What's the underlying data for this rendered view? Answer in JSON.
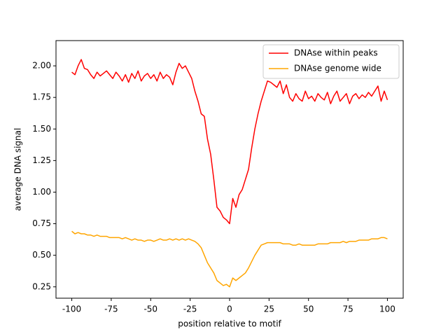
{
  "chart_data": {
    "type": "line",
    "xlabel": "position relative to motif",
    "ylabel": "average DNA signal",
    "x": [
      -100,
      -98,
      -96,
      -94,
      -92,
      -90,
      -88,
      -86,
      -84,
      -82,
      -80,
      -78,
      -76,
      -74,
      -72,
      -70,
      -68,
      -66,
      -64,
      -62,
      -60,
      -58,
      -56,
      -54,
      -52,
      -50,
      -48,
      -46,
      -44,
      -42,
      -40,
      -38,
      -36,
      -34,
      -32,
      -30,
      -28,
      -26,
      -24,
      -22,
      -20,
      -18,
      -16,
      -14,
      -12,
      -10,
      -8,
      -6,
      -4,
      -2,
      0,
      2,
      4,
      6,
      8,
      10,
      12,
      14,
      16,
      18,
      20,
      22,
      24,
      26,
      28,
      30,
      32,
      34,
      36,
      38,
      40,
      42,
      44,
      46,
      48,
      50,
      52,
      54,
      56,
      58,
      60,
      62,
      64,
      66,
      68,
      70,
      72,
      74,
      76,
      78,
      80,
      82,
      84,
      86,
      88,
      90,
      92,
      94,
      96,
      98,
      100
    ],
    "series": [
      {
        "name": "DNAse within peaks",
        "color": "#ff0000",
        "values": [
          1.95,
          1.93,
          2.0,
          2.05,
          1.98,
          1.97,
          1.93,
          1.9,
          1.95,
          1.92,
          1.94,
          1.96,
          1.93,
          1.9,
          1.95,
          1.92,
          1.88,
          1.93,
          1.87,
          1.94,
          1.9,
          1.96,
          1.88,
          1.92,
          1.94,
          1.9,
          1.93,
          1.88,
          1.95,
          1.9,
          1.93,
          1.91,
          1.85,
          1.95,
          2.02,
          1.98,
          2.0,
          1.95,
          1.9,
          1.8,
          1.72,
          1.62,
          1.6,
          1.42,
          1.3,
          1.1,
          0.88,
          0.85,
          0.8,
          0.78,
          0.75,
          0.95,
          0.88,
          0.98,
          1.02,
          1.1,
          1.18,
          1.35,
          1.5,
          1.62,
          1.72,
          1.8,
          1.88,
          1.87,
          1.85,
          1.83,
          1.88,
          1.78,
          1.85,
          1.75,
          1.72,
          1.78,
          1.74,
          1.72,
          1.8,
          1.74,
          1.76,
          1.72,
          1.78,
          1.75,
          1.73,
          1.79,
          1.7,
          1.76,
          1.8,
          1.72,
          1.75,
          1.78,
          1.7,
          1.76,
          1.78,
          1.74,
          1.77,
          1.75,
          1.79,
          1.76,
          1.8,
          1.84,
          1.72,
          1.8,
          1.73
        ]
      },
      {
        "name": "DNAse genome wide",
        "color": "#ffa500",
        "values": [
          0.69,
          0.67,
          0.68,
          0.67,
          0.67,
          0.66,
          0.66,
          0.65,
          0.66,
          0.65,
          0.65,
          0.65,
          0.64,
          0.64,
          0.64,
          0.64,
          0.63,
          0.64,
          0.63,
          0.62,
          0.63,
          0.62,
          0.62,
          0.61,
          0.62,
          0.62,
          0.61,
          0.62,
          0.63,
          0.62,
          0.62,
          0.63,
          0.62,
          0.63,
          0.62,
          0.63,
          0.62,
          0.63,
          0.62,
          0.61,
          0.59,
          0.56,
          0.5,
          0.44,
          0.4,
          0.36,
          0.3,
          0.28,
          0.26,
          0.27,
          0.25,
          0.32,
          0.3,
          0.32,
          0.34,
          0.36,
          0.4,
          0.45,
          0.5,
          0.54,
          0.58,
          0.59,
          0.6,
          0.6,
          0.6,
          0.6,
          0.6,
          0.59,
          0.59,
          0.59,
          0.58,
          0.58,
          0.59,
          0.58,
          0.58,
          0.58,
          0.58,
          0.58,
          0.59,
          0.59,
          0.59,
          0.59,
          0.6,
          0.6,
          0.6,
          0.6,
          0.61,
          0.6,
          0.61,
          0.61,
          0.61,
          0.62,
          0.62,
          0.62,
          0.62,
          0.63,
          0.63,
          0.63,
          0.64,
          0.64,
          0.63
        ]
      }
    ],
    "xlim": [
      -110,
      110
    ],
    "xticks": [
      -100,
      -75,
      -50,
      -25,
      0,
      25,
      50,
      75,
      100
    ],
    "ylim": [
      0.16,
      2.2
    ],
    "yticks": [
      0.25,
      {
        "value": 0.5,
        "label": "0.50"
      },
      0.75,
      {
        "value": 1.0,
        "label": "1.00"
      },
      1.25,
      {
        "value": 1.5,
        "label": "1.50"
      },
      1.75,
      {
        "value": 2.0,
        "label": "2.00"
      }
    ],
    "legend": "upper right"
  }
}
